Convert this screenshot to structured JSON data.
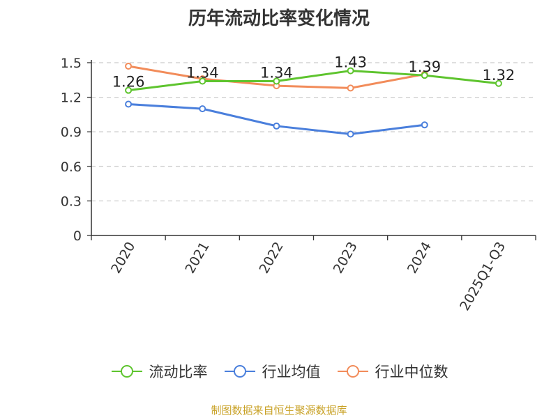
{
  "chart_data": {
    "type": "line",
    "title": "历年流动比率变化情况",
    "categories": [
      "2020",
      "2021",
      "2022",
      "2023",
      "2024",
      "2025Q1-Q3"
    ],
    "ylim": [
      0,
      1.5
    ],
    "yticks": [
      "0",
      "0.3",
      "0.6",
      "0.9",
      "1.2",
      "1.5"
    ],
    "ytick_values": [
      0,
      0.3,
      0.6,
      0.9,
      1.2,
      1.5
    ],
    "grid": true,
    "legend_position": "bottom",
    "series": [
      {
        "name": "流动比率",
        "color": "#5ec42e",
        "values": [
          1.26,
          1.34,
          1.34,
          1.43,
          1.39,
          1.32
        ],
        "labels": [
          "1.26",
          "1.34",
          "1.34",
          "1.43",
          "1.39",
          "1.32"
        ]
      },
      {
        "name": "行业均值",
        "color": "#4a7fdc",
        "values": [
          1.14,
          1.1,
          0.95,
          0.88,
          0.96,
          null
        ]
      },
      {
        "name": "行业中位数",
        "color": "#f28c5a",
        "values": [
          1.47,
          1.36,
          1.3,
          1.28,
          1.4,
          null
        ]
      }
    ]
  },
  "legend": {
    "items": [
      "流动比率",
      "行业均值",
      "行业中位数"
    ]
  },
  "source": "制图数据来自恒生聚源数据库"
}
